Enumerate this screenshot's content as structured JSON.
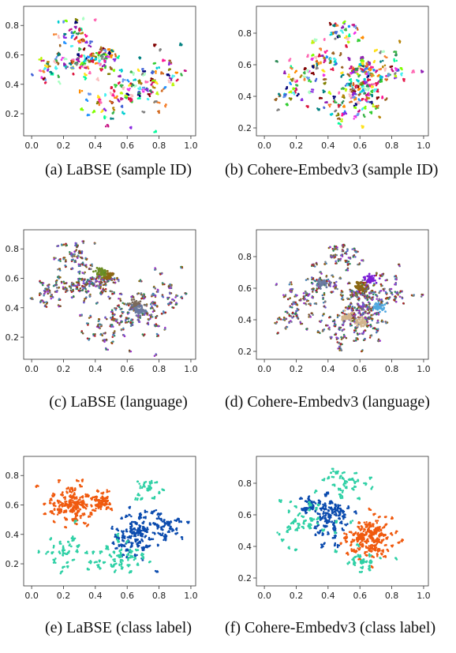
{
  "chart_data": [
    {
      "type": "scatter",
      "id": "a",
      "caption": "(a) LaBSE (sample ID)",
      "xticks": [
        "0.0",
        "0.2",
        "0.4",
        "0.6",
        "0.8",
        "1.0"
      ],
      "yticks": [
        "0.2",
        "0.4",
        "0.6",
        "0.8"
      ],
      "xlim": [
        -0.05,
        1.03
      ],
      "ylim": [
        0.05,
        0.93
      ],
      "coloring": "sample-id",
      "clusters": [
        [
          0.3,
          0.55,
          0.15,
          0.1,
          60
        ],
        [
          0.45,
          0.6,
          0.08,
          0.05,
          35
        ],
        [
          0.7,
          0.4,
          0.15,
          0.12,
          50
        ],
        [
          0.55,
          0.3,
          0.2,
          0.15,
          50
        ],
        [
          0.25,
          0.75,
          0.12,
          0.08,
          30
        ],
        [
          0.85,
          0.5,
          0.1,
          0.15,
          25
        ],
        [
          0.1,
          0.5,
          0.08,
          0.12,
          20
        ]
      ]
    },
    {
      "type": "scatter",
      "id": "b",
      "caption": "(b) Cohere-Embedv3 (sample ID)",
      "xticks": [
        "0.0",
        "0.2",
        "0.4",
        "0.6",
        "0.8",
        "1.0"
      ],
      "yticks": [
        "0.2",
        "0.4",
        "0.6",
        "0.8"
      ],
      "xlim": [
        -0.05,
        1.03
      ],
      "ylim": [
        0.15,
        0.97
      ],
      "coloring": "sample-id",
      "clusters": [
        [
          0.62,
          0.55,
          0.1,
          0.1,
          70
        ],
        [
          0.62,
          0.42,
          0.12,
          0.08,
          60
        ],
        [
          0.35,
          0.6,
          0.12,
          0.12,
          45
        ],
        [
          0.5,
          0.8,
          0.12,
          0.08,
          30
        ],
        [
          0.2,
          0.45,
          0.12,
          0.15,
          35
        ],
        [
          0.8,
          0.55,
          0.1,
          0.15,
          30
        ],
        [
          0.5,
          0.3,
          0.15,
          0.08,
          30
        ]
      ]
    },
    {
      "type": "scatter",
      "id": "c",
      "caption": "(c) LaBSE (language)",
      "xticks": [
        "0.0",
        "0.2",
        "0.4",
        "0.6",
        "0.8",
        "1.0"
      ],
      "yticks": [
        "0.2",
        "0.4",
        "0.6",
        "0.8"
      ],
      "xlim": [
        -0.05,
        1.03
      ],
      "ylim": [
        0.05,
        0.93
      ],
      "coloring": "language",
      "clusters": [
        [
          0.3,
          0.55,
          0.15,
          0.1,
          60
        ],
        [
          0.45,
          0.6,
          0.08,
          0.05,
          35
        ],
        [
          0.7,
          0.4,
          0.15,
          0.12,
          50
        ],
        [
          0.55,
          0.3,
          0.2,
          0.15,
          50
        ],
        [
          0.25,
          0.75,
          0.12,
          0.08,
          30
        ],
        [
          0.85,
          0.5,
          0.1,
          0.15,
          25
        ],
        [
          0.1,
          0.5,
          0.08,
          0.12,
          20
        ]
      ],
      "hotspots": [
        [
          0.48,
          0.62,
          "#8B6914"
        ],
        [
          0.44,
          0.64,
          "#6B8E23"
        ],
        [
          0.65,
          0.42,
          "#7a6a5a"
        ],
        [
          0.68,
          0.38,
          "#6a7aa0"
        ]
      ]
    },
    {
      "type": "scatter",
      "id": "d",
      "caption": "(d) Cohere-Embedv3 (language)",
      "xticks": [
        "0.0",
        "0.2",
        "0.4",
        "0.6",
        "0.8",
        "1.0"
      ],
      "yticks": [
        "0.2",
        "0.4",
        "0.6",
        "0.8"
      ],
      "xlim": [
        -0.05,
        1.03
      ],
      "ylim": [
        0.15,
        0.97
      ],
      "coloring": "language",
      "clusters": [
        [
          0.62,
          0.55,
          0.1,
          0.1,
          70
        ],
        [
          0.62,
          0.42,
          0.12,
          0.08,
          60
        ],
        [
          0.35,
          0.6,
          0.12,
          0.12,
          45
        ],
        [
          0.5,
          0.8,
          0.12,
          0.08,
          30
        ],
        [
          0.2,
          0.45,
          0.12,
          0.15,
          35
        ],
        [
          0.8,
          0.55,
          0.1,
          0.15,
          30
        ],
        [
          0.5,
          0.3,
          0.15,
          0.08,
          30
        ]
      ],
      "hotspots": [
        [
          0.66,
          0.66,
          "#7B1FD6"
        ],
        [
          0.6,
          0.61,
          "#8B6914"
        ],
        [
          0.72,
          0.48,
          "#4FA8E0"
        ],
        [
          0.6,
          0.38,
          "#d2b48c"
        ],
        [
          0.52,
          0.42,
          "#d2b48c"
        ],
        [
          0.36,
          0.63,
          "#6a7aa0"
        ]
      ]
    },
    {
      "type": "scatter",
      "id": "e",
      "caption": "(e) LaBSE (class label)",
      "xticks": [
        "0.0",
        "0.2",
        "0.4",
        "0.6",
        "0.8",
        "1.0"
      ],
      "yticks": [
        "0.2",
        "0.4",
        "0.6",
        "0.8"
      ],
      "xlim": [
        -0.05,
        1.03
      ],
      "ylim": [
        0.05,
        0.93
      ],
      "coloring": "class",
      "class_colors": [
        "#F05A0F",
        "#0B4BAE",
        "#2ED0A5"
      ],
      "clusters": [
        [
          0.25,
          0.6,
          0.13,
          0.12,
          110,
          0
        ],
        [
          0.45,
          0.62,
          0.05,
          0.04,
          35,
          0
        ],
        [
          0.65,
          0.4,
          0.12,
          0.13,
          90,
          1
        ],
        [
          0.85,
          0.45,
          0.1,
          0.1,
          35,
          1
        ],
        [
          0.55,
          0.25,
          0.15,
          0.1,
          45,
          2
        ],
        [
          0.2,
          0.3,
          0.12,
          0.12,
          30,
          2
        ],
        [
          0.75,
          0.7,
          0.08,
          0.08,
          20,
          2
        ]
      ]
    },
    {
      "type": "scatter",
      "id": "f",
      "caption": "(f) Cohere-Embedv3 (class label)",
      "xticks": [
        "0.0",
        "0.2",
        "0.4",
        "0.6",
        "0.8",
        "1.0"
      ],
      "yticks": [
        "0.2",
        "0.4",
        "0.6",
        "0.8"
      ],
      "xlim": [
        -0.05,
        1.03
      ],
      "ylim": [
        0.15,
        0.97
      ],
      "coloring": "class",
      "class_colors": [
        "#F05A0F",
        "#0B4BAE",
        "#2ED0A5"
      ],
      "clusters": [
        [
          0.67,
          0.45,
          0.12,
          0.1,
          130,
          0
        ],
        [
          0.42,
          0.58,
          0.1,
          0.12,
          80,
          1
        ],
        [
          0.3,
          0.65,
          0.07,
          0.05,
          25,
          1
        ],
        [
          0.25,
          0.55,
          0.15,
          0.15,
          40,
          2
        ],
        [
          0.5,
          0.8,
          0.12,
          0.08,
          30,
          2
        ],
        [
          0.6,
          0.32,
          0.15,
          0.06,
          25,
          2
        ]
      ]
    }
  ]
}
